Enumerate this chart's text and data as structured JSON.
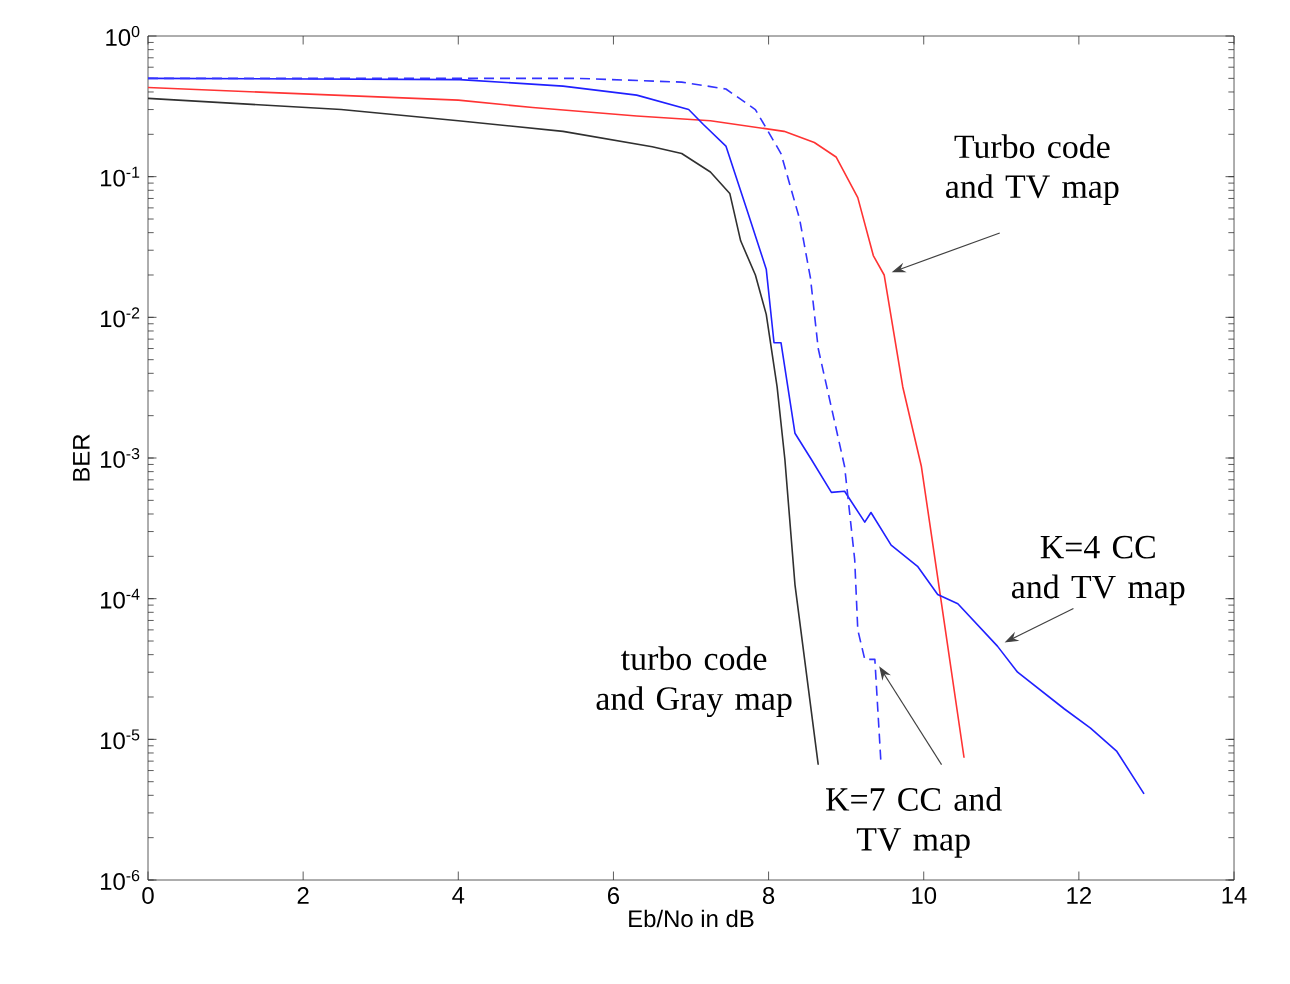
{
  "chart_data": {
    "type": "line",
    "xlabel": "Eb/No in dB",
    "ylabel": "BER",
    "log": "y",
    "xlim": [
      0,
      14
    ],
    "xticks": [
      0,
      2,
      4,
      6,
      8,
      10,
      12,
      14
    ],
    "ylim": [
      1e-06,
      1
    ],
    "yticks": [
      {
        "value": 1e-06,
        "label": "10$^{-6}$"
      },
      {
        "value": 1e-05,
        "label": "10$^{-5}$"
      },
      {
        "value": 0.0001,
        "label": "10$^{-4}$"
      },
      {
        "value": 0.001,
        "label": "10$^{-3}$"
      },
      {
        "value": 0.01,
        "label": "10$^{-2}$"
      },
      {
        "value": 0.1,
        "label": "10$^{-1}$"
      },
      {
        "value": 1,
        "label": "10$^{0}$"
      }
    ],
    "grid": false,
    "marker": "none",
    "annotations": [
      {
        "text": "Turbo code and TV map",
        "x": 9.49,
        "y": 0.02
      },
      {
        "text": "K=4 CC and TV map",
        "x": 10.95,
        "y": 4.6e-05
      },
      "turbo code and Gray map",
      {
        "text": "K=7 CC  and TV map",
        "x": 9.37,
        "y": 3.7e-05
      }
    ],
    "series": [
      {
        "color": "#ff3333",
        "line_style": "solid",
        "x": [
          0,
          4.0,
          4.96,
          6.3,
          7.25,
          8.2,
          8.59,
          8.87,
          9.15,
          9.35,
          9.49,
          9.73,
          9.97,
          10.22,
          10.52
        ],
        "values": [
          0.43,
          0.35,
          0.31,
          0.27,
          0.25,
          0.21,
          0.175,
          0.138,
          0.071,
          0.0275,
          0.02,
          0.0032,
          0.00087,
          0.0001,
          7.4e-06
        ]
      },
      {
        "color": "#2020ff",
        "line_style": "solid",
        "x": [
          0,
          4.02,
          5.35,
          6.3,
          6.97,
          7.16,
          7.45,
          7.73,
          7.97,
          8.07,
          8.16,
          8.34,
          8.55,
          8.81,
          8.98,
          9.24,
          9.32,
          9.58,
          9.92,
          10.18,
          10.44,
          10.95,
          11.21,
          11.81,
          12.15,
          12.49,
          12.84
        ],
        "values": [
          0.5,
          0.49,
          0.44,
          0.38,
          0.3,
          0.235,
          0.165,
          0.056,
          0.022,
          0.0066,
          0.0066,
          0.0015,
          0.00098,
          0.00057,
          0.00058,
          0.00035,
          0.00041,
          0.00024,
          0.00017,
          0.000107,
          9.2e-05,
          4.6e-05,
          3e-05,
          1.65e-05,
          1.2e-05,
          8.2e-06,
          4.1e-06
        ]
      },
      {
        "color": "#303030",
        "line_style": "solid",
        "x": [
          0,
          2.49,
          4.0,
          5.35,
          6.5,
          6.88,
          7.25,
          7.5,
          7.64,
          7.83,
          7.97,
          8.11,
          8.21,
          8.34,
          8.64
        ],
        "values": [
          0.36,
          0.3,
          0.25,
          0.21,
          0.163,
          0.146,
          0.108,
          0.076,
          0.035,
          0.02,
          0.0105,
          0.0032,
          0.00098,
          0.000126,
          6.6e-06
        ]
      },
      {
        "color": "#3333ff",
        "line_style": "dashed",
        "x": [
          0,
          5.54,
          6.88,
          7.45,
          7.83,
          8.16,
          8.4,
          8.54,
          8.64,
          8.98,
          9.11,
          9.15,
          9.24,
          9.37,
          9.45
        ],
        "values": [
          0.5,
          0.5,
          0.47,
          0.42,
          0.3,
          0.146,
          0.05,
          0.019,
          0.006,
          0.00087,
          0.00019,
          6e-05,
          3.7e-05,
          3.7e-05,
          6.6e-06
        ]
      }
    ]
  }
}
